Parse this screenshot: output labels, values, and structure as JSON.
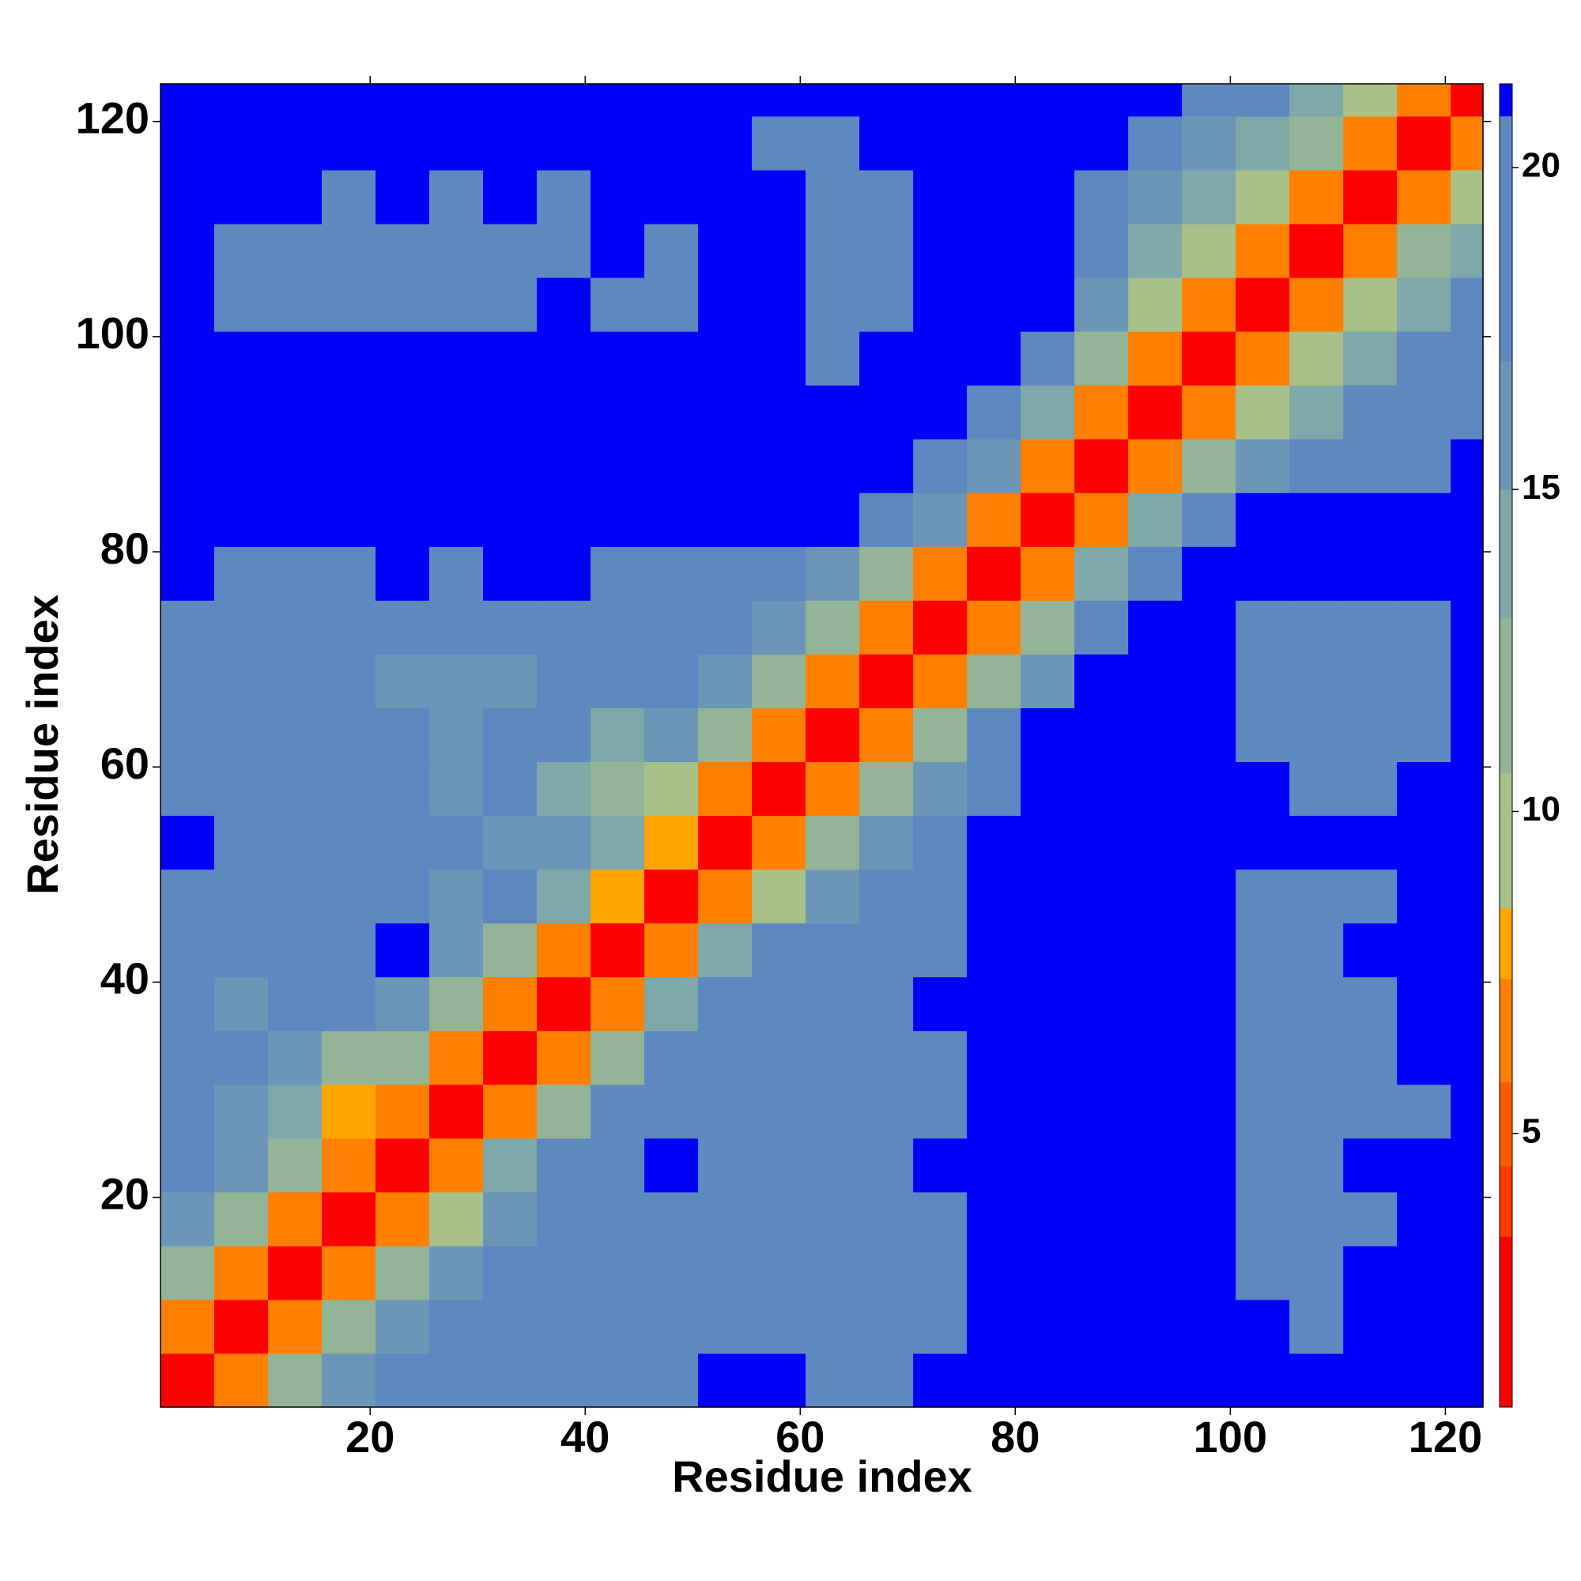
{
  "chart_data": {
    "type": "heatmap",
    "xlabel": "Residue index",
    "ylabel": "Residue index",
    "xlim": [
      0.5,
      123.5
    ],
    "ylim": [
      0.5,
      123.5
    ],
    "xticks": [
      20,
      40,
      60,
      80,
      100,
      120
    ],
    "yticks": [
      20,
      40,
      60,
      80,
      100,
      120
    ],
    "xbins": [
      0.5,
      5.5,
      10.5,
      15.5,
      20.5,
      25.5,
      30.5,
      35.5,
      40.5,
      45.5,
      50.5,
      55.5,
      60.5,
      65.5,
      70.5,
      75.5,
      80.5,
      85.5,
      90.5,
      95.5,
      100.5,
      105.5,
      110.5,
      115.5,
      120.5,
      123.5
    ],
    "ybins": [
      0.5,
      5.5,
      10.5,
      15.5,
      20.5,
      25.5,
      30.5,
      35.5,
      40.5,
      45.5,
      50.5,
      55.5,
      60.5,
      65.5,
      70.5,
      75.5,
      80.5,
      85.5,
      90.5,
      95.5,
      100.5,
      105.5,
      110.5,
      115.5,
      120.5,
      123.5
    ],
    "levels": [
      0.75,
      3.4,
      4.5,
      5.8,
      7.4,
      8.5,
      10.6,
      13,
      15,
      17,
      20.8,
      21.3
    ],
    "colors": [
      "#ff0000",
      "#ff3c00",
      "#ff5a00",
      "#ff8000",
      "#ffa500",
      "#a8c08a",
      "#93b496",
      "#7fa8a8",
      "#6b96b8",
      "#5e88c0",
      "#0000ff"
    ],
    "colorbar_ticks": [
      5,
      10,
      15,
      20
    ],
    "z": [
      [
        2,
        7,
        12,
        16,
        18,
        20,
        20,
        18,
        19,
        19,
        21,
        21,
        20,
        20,
        21,
        21,
        21,
        21,
        21,
        21,
        21,
        21,
        21,
        21,
        21
      ],
      [
        7,
        2,
        7,
        12,
        16,
        17,
        19,
        17,
        18,
        20,
        20,
        20,
        19,
        19,
        20,
        21,
        21,
        21,
        21,
        21,
        21,
        20,
        21,
        21,
        21
      ],
      [
        12,
        7,
        2,
        7,
        12,
        15,
        17,
        17,
        18,
        18,
        19,
        19,
        18,
        19,
        20,
        21,
        21,
        21,
        21,
        21,
        20,
        18,
        21,
        21,
        21
      ],
      [
        15,
        12,
        7,
        2,
        7,
        10,
        16,
        18,
        19,
        18,
        19,
        18,
        17,
        18,
        19,
        21,
        21,
        21,
        21,
        21,
        20,
        18,
        20,
        21,
        21
      ],
      [
        17,
        15,
        11,
        7,
        2,
        7,
        13,
        17,
        20,
        21,
        19,
        18,
        18,
        19,
        21,
        21,
        21,
        21,
        21,
        21,
        20,
        20,
        21,
        21,
        21
      ],
      [
        17,
        16,
        14,
        8,
        7,
        2,
        7,
        12,
        17,
        20,
        20,
        18,
        17,
        17,
        19,
        21,
        21,
        21,
        21,
        21,
        19,
        19,
        19,
        20,
        21
      ],
      [
        18,
        17,
        15,
        12,
        12,
        7,
        2,
        7,
        11,
        17,
        19,
        18,
        17,
        18,
        20,
        21,
        21,
        21,
        21,
        21,
        19,
        19,
        20,
        21,
        21
      ],
      [
        18,
        16,
        19,
        20,
        16,
        11,
        7,
        2,
        7,
        13,
        18,
        19,
        18,
        18,
        21,
        21,
        21,
        21,
        21,
        21,
        20,
        20,
        20,
        21,
        21
      ],
      [
        18,
        18,
        18,
        20,
        21,
        16,
        12,
        7,
        2,
        7,
        13,
        17,
        17,
        18,
        20,
        21,
        21,
        21,
        21,
        21,
        20,
        20,
        21,
        21,
        21
      ],
      [
        19,
        18,
        18,
        17,
        18,
        15,
        17,
        13,
        8,
        2,
        7,
        10,
        15,
        17,
        19,
        21,
        21,
        21,
        21,
        21,
        19,
        19,
        20,
        21,
        21
      ],
      [
        21,
        20,
        18,
        18,
        18,
        17,
        16,
        15,
        13,
        8,
        2,
        7,
        11,
        16,
        20,
        21,
        21,
        21,
        21,
        21,
        21,
        21,
        21,
        21,
        21
      ],
      [
        20,
        19,
        18,
        17,
        17,
        16,
        17,
        14,
        11,
        9,
        7,
        2,
        7,
        11,
        16,
        20,
        21,
        21,
        21,
        21,
        21,
        20,
        19,
        21,
        21
      ],
      [
        19,
        17,
        17,
        17,
        17,
        15,
        17,
        18,
        13,
        15,
        11,
        7,
        2,
        7,
        11,
        17,
        21,
        21,
        21,
        21,
        20,
        20,
        20,
        20,
        21
      ],
      [
        19,
        18,
        17,
        17,
        16,
        16,
        16,
        17,
        17,
        18,
        15,
        11,
        7,
        2,
        7,
        11,
        16,
        21,
        21,
        21,
        20,
        19,
        19,
        19,
        21
      ],
      [
        20,
        19,
        17,
        18,
        18,
        17,
        19,
        18,
        17,
        19,
        18,
        16,
        11,
        7,
        2,
        7,
        12,
        20,
        21,
        21,
        20,
        20,
        20,
        20,
        21
      ],
      [
        21,
        20,
        20,
        20,
        21,
        20,
        21,
        21,
        20,
        19,
        20,
        17,
        15,
        12,
        7,
        2,
        7,
        14,
        20,
        21,
        21,
        21,
        21,
        21,
        21
      ],
      [
        21,
        21,
        21,
        21,
        21,
        21,
        21,
        21,
        21,
        21,
        21,
        21,
        21,
        19,
        16,
        7,
        2,
        7,
        14,
        19,
        21,
        21,
        21,
        21,
        21
      ],
      [
        21,
        21,
        21,
        21,
        21,
        21,
        21,
        21,
        21,
        21,
        21,
        21,
        21,
        21,
        20,
        15,
        7,
        2,
        7,
        11,
        15,
        18,
        19,
        20,
        21
      ],
      [
        21,
        21,
        21,
        21,
        21,
        21,
        21,
        21,
        21,
        21,
        21,
        21,
        21,
        21,
        21,
        19,
        14,
        7,
        2,
        6,
        10,
        14,
        17,
        18,
        20
      ],
      [
        21,
        21,
        21,
        21,
        21,
        21,
        21,
        21,
        21,
        21,
        21,
        21,
        20,
        21,
        21,
        21,
        19,
        11,
        6,
        2,
        6,
        10,
        13,
        17,
        19
      ],
      [
        21,
        20,
        19,
        20,
        20,
        20,
        20,
        21,
        20,
        19,
        21,
        21,
        20,
        20,
        21,
        21,
        21,
        15,
        10,
        6,
        2,
        6,
        10,
        14,
        17
      ],
      [
        21,
        20,
        19,
        20,
        20,
        20,
        20,
        20,
        21,
        20,
        21,
        21,
        20,
        20,
        21,
        21,
        21,
        18,
        13,
        10,
        6,
        2,
        6,
        11,
        14
      ],
      [
        21,
        21,
        21,
        20,
        21,
        20,
        21,
        20,
        21,
        21,
        21,
        21,
        20,
        20,
        21,
        21,
        21,
        19,
        16,
        14,
        10,
        6,
        2,
        6,
        10
      ],
      [
        21,
        21,
        21,
        21,
        21,
        21,
        21,
        21,
        21,
        21,
        21,
        20,
        20,
        21,
        21,
        21,
        21,
        21,
        18,
        16,
        14,
        11,
        6,
        2,
        6
      ],
      [
        21,
        21,
        21,
        21,
        21,
        21,
        21,
        21,
        21,
        21,
        21,
        21,
        21,
        21,
        21,
        21,
        21,
        21,
        21,
        19,
        17,
        14,
        10,
        6,
        2
      ]
    ]
  }
}
